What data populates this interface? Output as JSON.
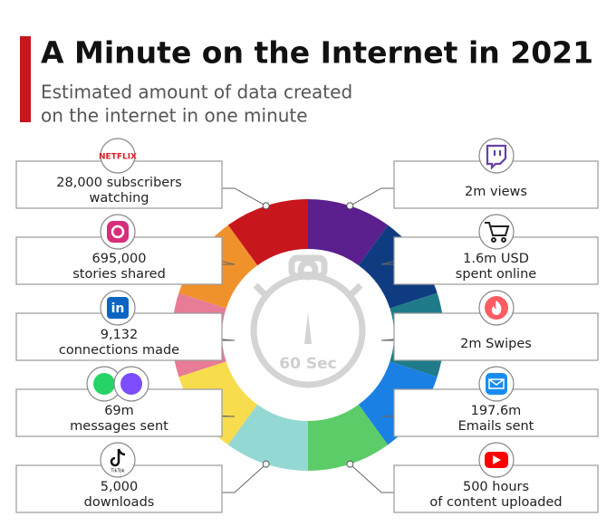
{
  "header": {
    "title": "A Minute on the Internet in 2021",
    "subtitle": [
      "Estimated amount of data created",
      "on the internet in one minute"
    ]
  },
  "center": {
    "label": "60 Sec"
  },
  "left": [
    {
      "icon": "netflix",
      "icon_text": "NETFLIX",
      "color": "#c8161d",
      "label": [
        "28,000 subscribers",
        "watching"
      ]
    },
    {
      "icon": "instagram",
      "color": "#f0922b",
      "label": [
        "695,000",
        "stories shared"
      ]
    },
    {
      "icon": "linkedin",
      "color": "#e87b95",
      "label": [
        "9,132",
        "connections made"
      ]
    },
    {
      "icon": "whatsapp",
      "color": "#f7dc4e",
      "label": [
        "69m",
        "messages sent"
      ]
    },
    {
      "icon": "tiktok",
      "icon_text": "TikTok",
      "color": "#94d8d4",
      "label": [
        "5,000",
        "downloads"
      ]
    }
  ],
  "right": [
    {
      "icon": "twitch",
      "color": "#5b1f8e",
      "label": [
        "2m views"
      ]
    },
    {
      "icon": "cart",
      "color": "#0f3c80",
      "label": [
        "1.6m USD",
        "spent online"
      ]
    },
    {
      "icon": "tinder",
      "color": "#1f7b8a",
      "label": [
        "2m Swipes"
      ]
    },
    {
      "icon": "email",
      "color": "#1a80e3",
      "label": [
        "197.6m",
        "Emails sent"
      ]
    },
    {
      "icon": "youtube",
      "color": "#5ccc68",
      "label": [
        "500 hours",
        "of content uploaded"
      ]
    }
  ]
}
